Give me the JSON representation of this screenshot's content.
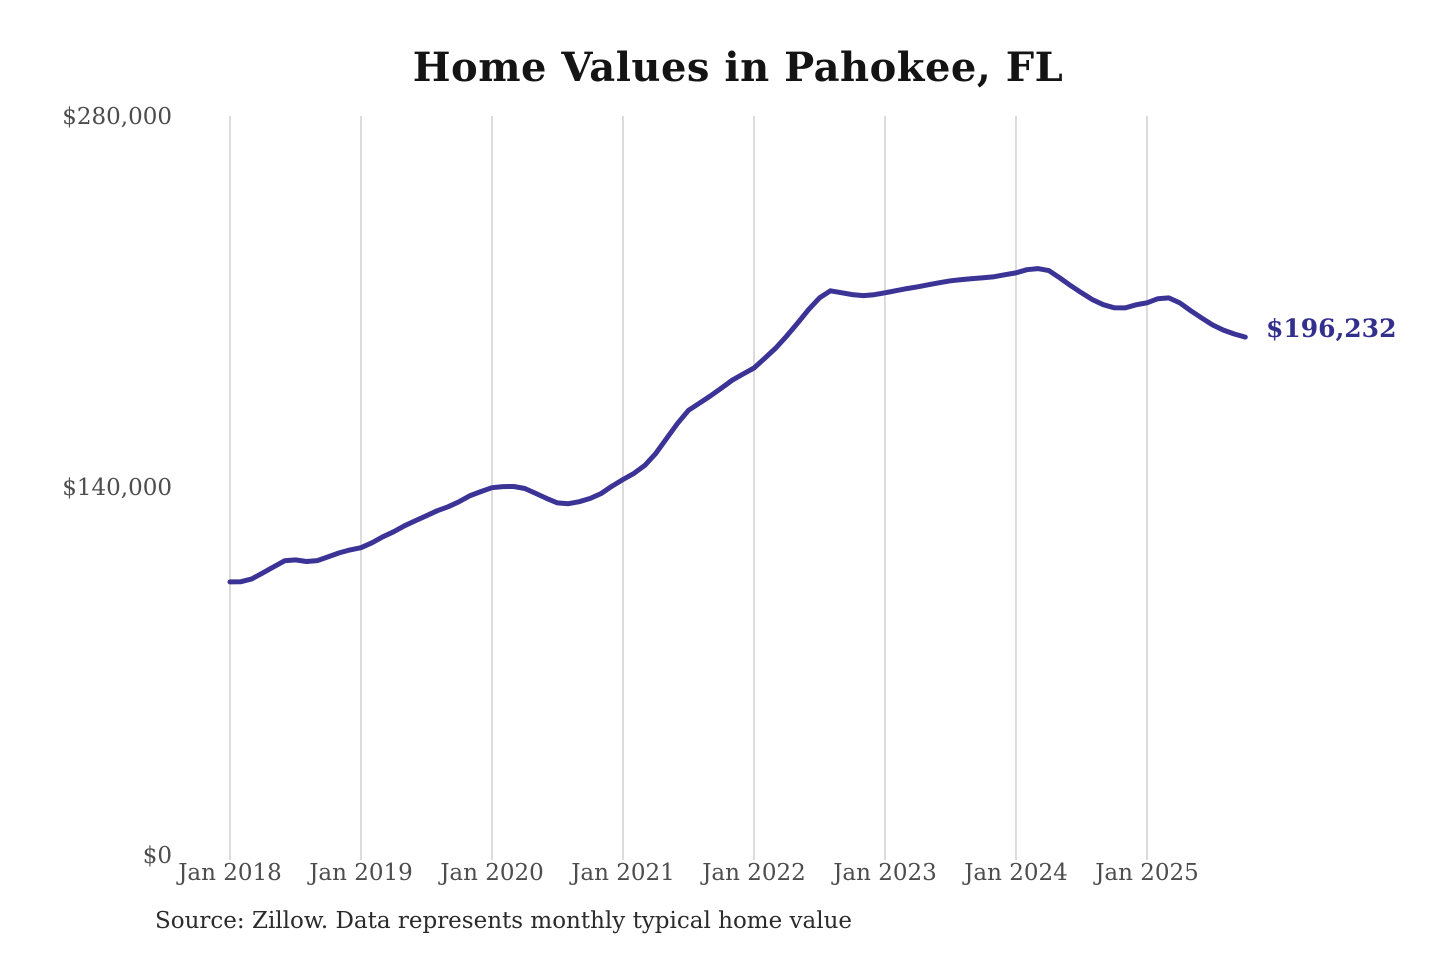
{
  "chart_data": {
    "type": "line",
    "title": "Home Values in Pahokee, FL",
    "source_note": "Source: Zillow. Data represents monthly typical home value",
    "unit": "USD",
    "frequency": "monthly",
    "start": "2018-01",
    "end": "2025-10",
    "end_value": 196232,
    "end_label": "$196,232",
    "ylim": [
      0,
      280000
    ],
    "y_tick_values": [
      0,
      140000,
      280000
    ],
    "y_tick_labels": [
      "$0",
      "$140,000",
      "$280,000"
    ],
    "x_tick_labels": [
      "Jan 2018",
      "Jan 2019",
      "Jan 2020",
      "Jan 2021",
      "Jan 2022",
      "Jan 2023",
      "Jan 2024",
      "Jan 2025"
    ],
    "grid": "vertical-only",
    "legend": "none",
    "line_color": "#3b3395",
    "end_label_color": "#332f8c",
    "grid_color": "#cccccc",
    "tick_color": "#4d4d4d",
    "values": [
      103478,
      103561,
      104612,
      106874,
      109215,
      111480,
      111793,
      111205,
      111528,
      112984,
      114476,
      115610,
      116420,
      118296,
      120571,
      122510,
      124775,
      126693,
      128570,
      130452,
      131986,
      133904,
      136178,
      137722,
      139184,
      139571,
      139603,
      138873,
      137012,
      135095,
      133420,
      133118,
      133876,
      135107,
      136954,
      139782,
      142266,
      144580,
      147634,
      152181,
      157902,
      163577,
      168483,
      171164,
      173928,
      176871,
      179904,
      182237,
      184529,
      188257,
      192114,
      196672,
      201588,
      206631,
      211072,
      213761,
      213034,
      212318,
      211946,
      212290,
      213009,
      213794,
      214613,
      215288,
      216070,
      216842,
      217555,
      218013,
      218395,
      218744,
      219102,
      219877,
      220563,
      221776,
      222184,
      221413,
      218688,
      215731,
      213016,
      210422,
      208517,
      207311,
      207289,
      208463,
      209214,
      210785,
      211093,
      209185,
      206248,
      203517,
      200843,
      198876,
      197401,
      196232
    ]
  }
}
